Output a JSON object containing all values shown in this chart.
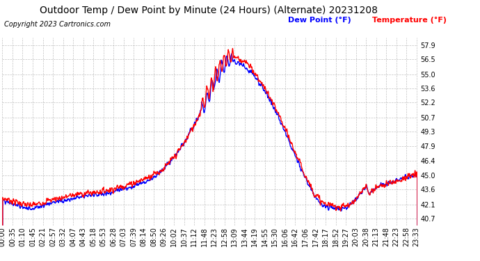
{
  "title": "Outdoor Temp / Dew Point by Minute (24 Hours) (Alternate) 20231208",
  "copyright": "Copyright 2023 Cartronics.com",
  "legend_dew": "Dew Point (°F)",
  "legend_temp": "Temperature (°F)",
  "dew_color": "#0000ff",
  "temp_color": "#ff0000",
  "background_color": "#ffffff",
  "grid_color": "#999999",
  "yticks": [
    40.7,
    42.1,
    43.6,
    45.0,
    46.4,
    47.9,
    49.3,
    50.7,
    52.2,
    53.6,
    55.0,
    56.5,
    57.9
  ],
  "ylim": [
    40.0,
    58.6
  ],
  "x_labels": [
    "00:00",
    "00:35",
    "01:10",
    "01:45",
    "02:21",
    "02:57",
    "03:32",
    "04:07",
    "04:43",
    "05:18",
    "05:53",
    "06:28",
    "07:03",
    "07:39",
    "08:14",
    "08:50",
    "09:26",
    "10:02",
    "10:37",
    "11:12",
    "11:48",
    "12:23",
    "12:58",
    "13:09",
    "13:44",
    "14:19",
    "14:55",
    "15:30",
    "16:06",
    "16:42",
    "17:06",
    "17:42",
    "18:17",
    "18:52",
    "19:27",
    "20:03",
    "20:38",
    "21:13",
    "21:48",
    "22:23",
    "22:58",
    "23:33"
  ],
  "line_width": 1.0,
  "title_fontsize": 10,
  "copyright_fontsize": 7,
  "legend_fontsize": 8,
  "tick_fontsize": 7
}
